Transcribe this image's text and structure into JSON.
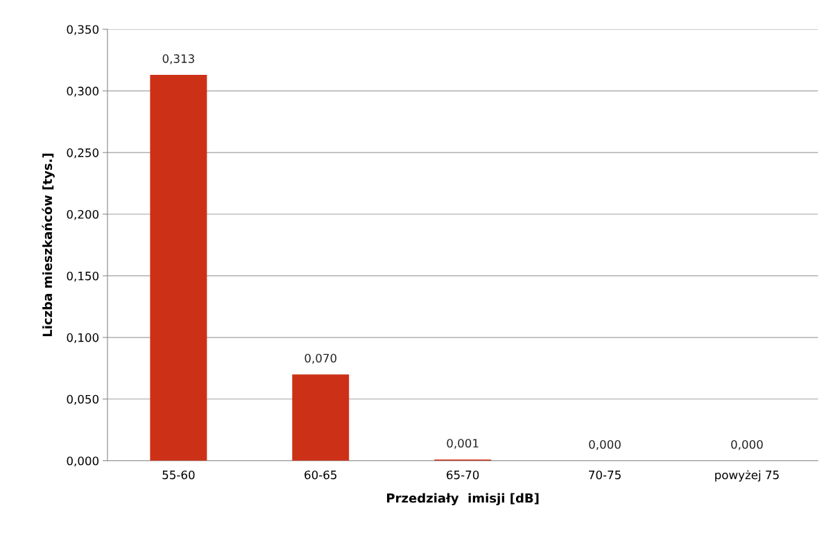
{
  "chart_data": {
    "type": "bar",
    "xlabel": "Przedziały  imisji [dB]",
    "ylabel": "Liczba mieszkańców [tys.]",
    "categories": [
      "55-60",
      "60-65",
      "65-70",
      "70-75",
      "powyżej 75"
    ],
    "values": [
      0.313,
      0.07,
      0.001,
      0.0,
      0.0
    ],
    "value_labels": [
      "0,313",
      "0,070",
      "0,001",
      "0,000",
      "0,000"
    ],
    "color": "#cc3118",
    "ylim": [
      0,
      0.35
    ],
    "yticks": [
      {
        "value": 0,
        "label": "0,000"
      },
      {
        "value": 0.05,
        "label": "0,050"
      },
      {
        "value": 0.1,
        "label": "0,100"
      },
      {
        "value": 0.15,
        "label": "0,150"
      },
      {
        "value": 0.2,
        "label": "0,200"
      },
      {
        "value": 0.25,
        "label": "0,250"
      },
      {
        "value": 0.3,
        "label": "0,300"
      },
      {
        "value": 0.35,
        "label": "0,350"
      }
    ],
    "grid": "y"
  }
}
